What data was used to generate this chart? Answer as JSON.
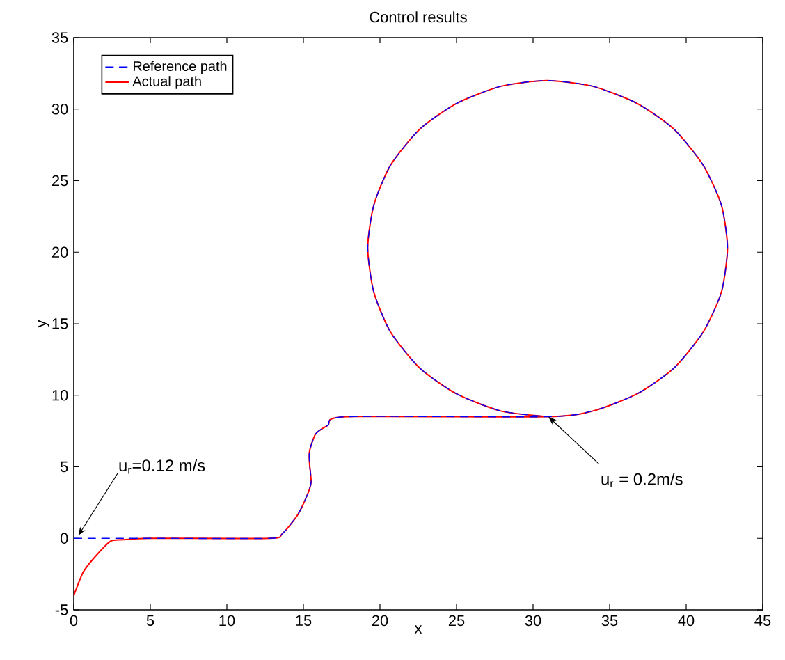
{
  "chart_data": {
    "type": "line",
    "title": "Control results",
    "xlabel": "x",
    "ylabel": "y",
    "xlim": [
      0,
      45
    ],
    "ylim": [
      -5,
      35
    ],
    "xticks": [
      0,
      5,
      10,
      15,
      20,
      25,
      30,
      35,
      40,
      45
    ],
    "yticks": [
      -5,
      0,
      5,
      10,
      15,
      20,
      25,
      30,
      35
    ],
    "grid": false,
    "legend": "top left",
    "marker": "none",
    "series": [
      {
        "name": "Reference path",
        "color": "#0000ff",
        "line_style": "dashed",
        "x": [
          0,
          5,
          12.8,
          13.6,
          14.6,
          15.2,
          15.5,
          15.4,
          15.4,
          15.8,
          16.6,
          17.8,
          30.9,
          33.9,
          36.8,
          39.2,
          41.1,
          42.3,
          42.7,
          42.3,
          41.1,
          39.2,
          36.8,
          33.9,
          30.9,
          27.9,
          25.0,
          22.6,
          20.7,
          19.6,
          19.2,
          19.6,
          20.7,
          22.6,
          25.0,
          27.9,
          30.9
        ],
        "values": [
          0,
          0,
          0,
          0.3,
          1.6,
          2.9,
          3.9,
          5.2,
          6.1,
          7.3,
          7.9,
          8.5,
          8.5,
          8.9,
          10.1,
          11.9,
          14.4,
          17.2,
          20.3,
          23.3,
          26.1,
          28.6,
          30.4,
          31.6,
          32.0,
          31.6,
          30.4,
          28.6,
          26.1,
          23.3,
          20.3,
          17.2,
          14.4,
          11.9,
          10.1,
          8.9,
          8.5
        ]
      },
      {
        "name": "Actual path",
        "color": "#ff0000",
        "line_style": "solid",
        "x": [
          0,
          0.6,
          1.3,
          2.4,
          3.2,
          5,
          12.8,
          13.6,
          14.6,
          15.2,
          15.5,
          15.4,
          15.4,
          15.8,
          16.6,
          17.8,
          30.9,
          33.9,
          36.8,
          39.2,
          41.1,
          42.3,
          42.7,
          42.3,
          41.1,
          39.2,
          36.8,
          33.9,
          30.9,
          27.9,
          25.0,
          22.6,
          20.7,
          19.6,
          19.2,
          19.6,
          20.7,
          22.6,
          25.0,
          27.9,
          30.9
        ],
        "values": [
          -4.0,
          -2.4,
          -1.4,
          -0.2,
          -0.1,
          0,
          0,
          0.3,
          1.6,
          2.9,
          3.9,
          5.2,
          6.1,
          7.3,
          7.9,
          8.5,
          8.5,
          8.9,
          10.1,
          11.9,
          14.4,
          17.2,
          20.3,
          23.3,
          26.1,
          28.6,
          30.4,
          31.6,
          32.0,
          31.6,
          30.4,
          28.6,
          26.1,
          23.3,
          20.3,
          17.2,
          14.4,
          11.9,
          10.1,
          8.9,
          8.5
        ]
      }
    ],
    "annotations": [
      {
        "text": "u$_{r}$=0.12 m/s",
        "x": 0.3,
        "y": 0.2
      },
      {
        "text": "u$_{r}$ = 0.2m/s",
        "x": 31,
        "y": 8.5
      }
    ]
  }
}
